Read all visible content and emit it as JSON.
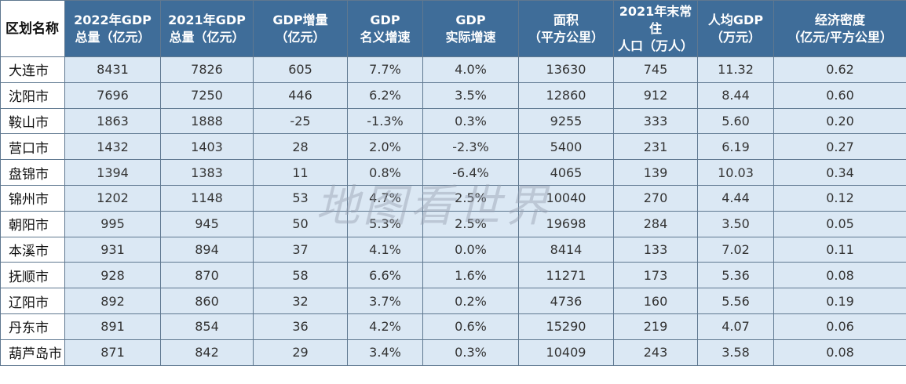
{
  "watermark": "地图看世界",
  "table": {
    "headers": [
      {
        "l1": "区划名称",
        "l2": ""
      },
      {
        "l1": "2022年GDP",
        "l2": "总量（亿元）"
      },
      {
        "l1": "2021年GDP",
        "l2": "总量（亿元）"
      },
      {
        "l1": "GDP增量",
        "l2": "（亿元）"
      },
      {
        "l1": "GDP",
        "l2": "名义增速"
      },
      {
        "l1": "GDP",
        "l2": "实际增速"
      },
      {
        "l1": "面积",
        "l2": "（平方公里）"
      },
      {
        "l1": "2021年末常住",
        "l2": "人口（万人）"
      },
      {
        "l1": "人均GDP",
        "l2": "（万元）"
      },
      {
        "l1": "经济密度",
        "l2": "（亿元/平方公里）"
      }
    ],
    "rows": [
      [
        "大连市",
        "8431",
        "7826",
        "605",
        "7.7%",
        "4.0%",
        "13630",
        "745",
        "11.32",
        "0.62"
      ],
      [
        "沈阳市",
        "7696",
        "7250",
        "446",
        "6.2%",
        "3.5%",
        "12860",
        "912",
        "8.44",
        "0.60"
      ],
      [
        "鞍山市",
        "1863",
        "1888",
        "-25",
        "-1.3%",
        "0.3%",
        "9255",
        "333",
        "5.60",
        "0.20"
      ],
      [
        "营口市",
        "1432",
        "1403",
        "28",
        "2.0%",
        "-2.3%",
        "5400",
        "231",
        "6.19",
        "0.27"
      ],
      [
        "盘锦市",
        "1394",
        "1383",
        "11",
        "0.8%",
        "-6.4%",
        "4065",
        "139",
        "10.03",
        "0.34"
      ],
      [
        "锦州市",
        "1202",
        "1148",
        "53",
        "4.7%",
        "2.5%",
        "10040",
        "270",
        "4.44",
        "0.12"
      ],
      [
        "朝阳市",
        "995",
        "945",
        "50",
        "5.3%",
        "2.5%",
        "19698",
        "284",
        "3.50",
        "0.05"
      ],
      [
        "本溪市",
        "931",
        "894",
        "37",
        "4.1%",
        "0.0%",
        "8414",
        "133",
        "7.02",
        "0.11"
      ],
      [
        "抚顺市",
        "928",
        "870",
        "58",
        "6.6%",
        "1.6%",
        "11271",
        "173",
        "5.36",
        "0.08"
      ],
      [
        "辽阳市",
        "892",
        "860",
        "32",
        "3.7%",
        "0.2%",
        "4736",
        "160",
        "5.56",
        "0.19"
      ],
      [
        "丹东市",
        "891",
        "854",
        "36",
        "4.2%",
        "0.6%",
        "15290",
        "219",
        "4.07",
        "0.06"
      ],
      [
        "葫芦岛市",
        "871",
        "842",
        "29",
        "3.4%",
        "0.3%",
        "10409",
        "243",
        "3.58",
        "0.08"
      ]
    ]
  }
}
